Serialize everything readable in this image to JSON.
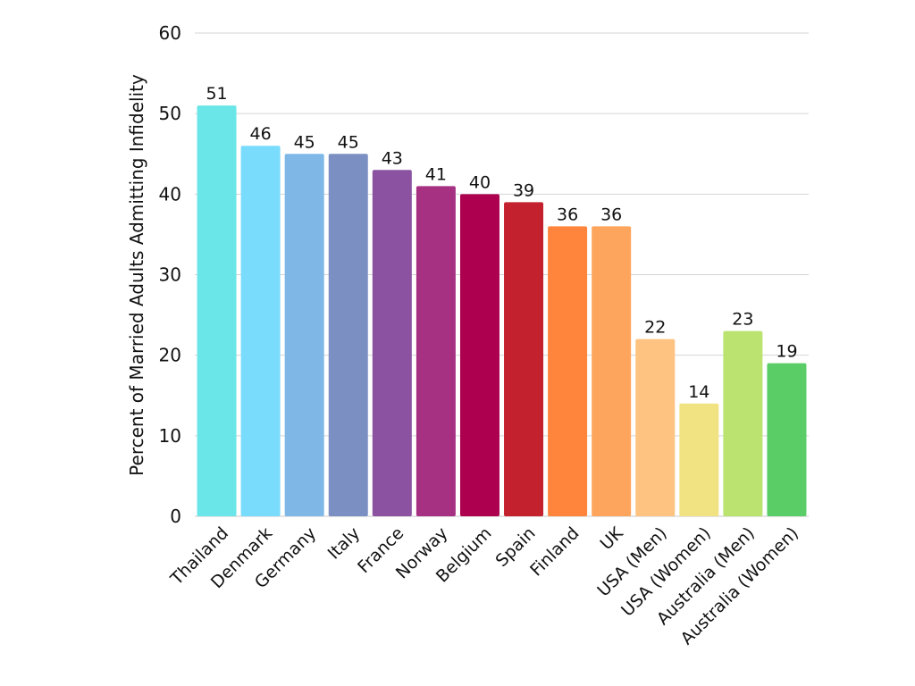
{
  "chart_data": {
    "type": "bar",
    "title": "",
    "xlabel": "",
    "ylabel": "Percent of Married Adults Admitting Infidelity",
    "ylim": [
      0,
      60
    ],
    "yticks": [
      0,
      10,
      20,
      30,
      40,
      50,
      60
    ],
    "grid": true,
    "categories": [
      "Thailand",
      "Denmark",
      "Germany",
      "Italy",
      "France",
      "Norway",
      "Belgium",
      "Spain",
      "Finland",
      "UK",
      "USA (Men)",
      "USA (Women)",
      "Australia (Men)",
      "Australia (Women)"
    ],
    "values": [
      51,
      46,
      45,
      45,
      43,
      41,
      40,
      39,
      36,
      36,
      22,
      14,
      23,
      19
    ],
    "colors": [
      "#6ae6e8",
      "#7adcfd",
      "#7fb8e7",
      "#7b8fc3",
      "#8a52a0",
      "#a63182",
      "#ad0150",
      "#c4212e",
      "#fe853b",
      "#fea55d",
      "#fec380",
      "#f1e282",
      "#bae46f",
      "#5bcd67"
    ]
  }
}
